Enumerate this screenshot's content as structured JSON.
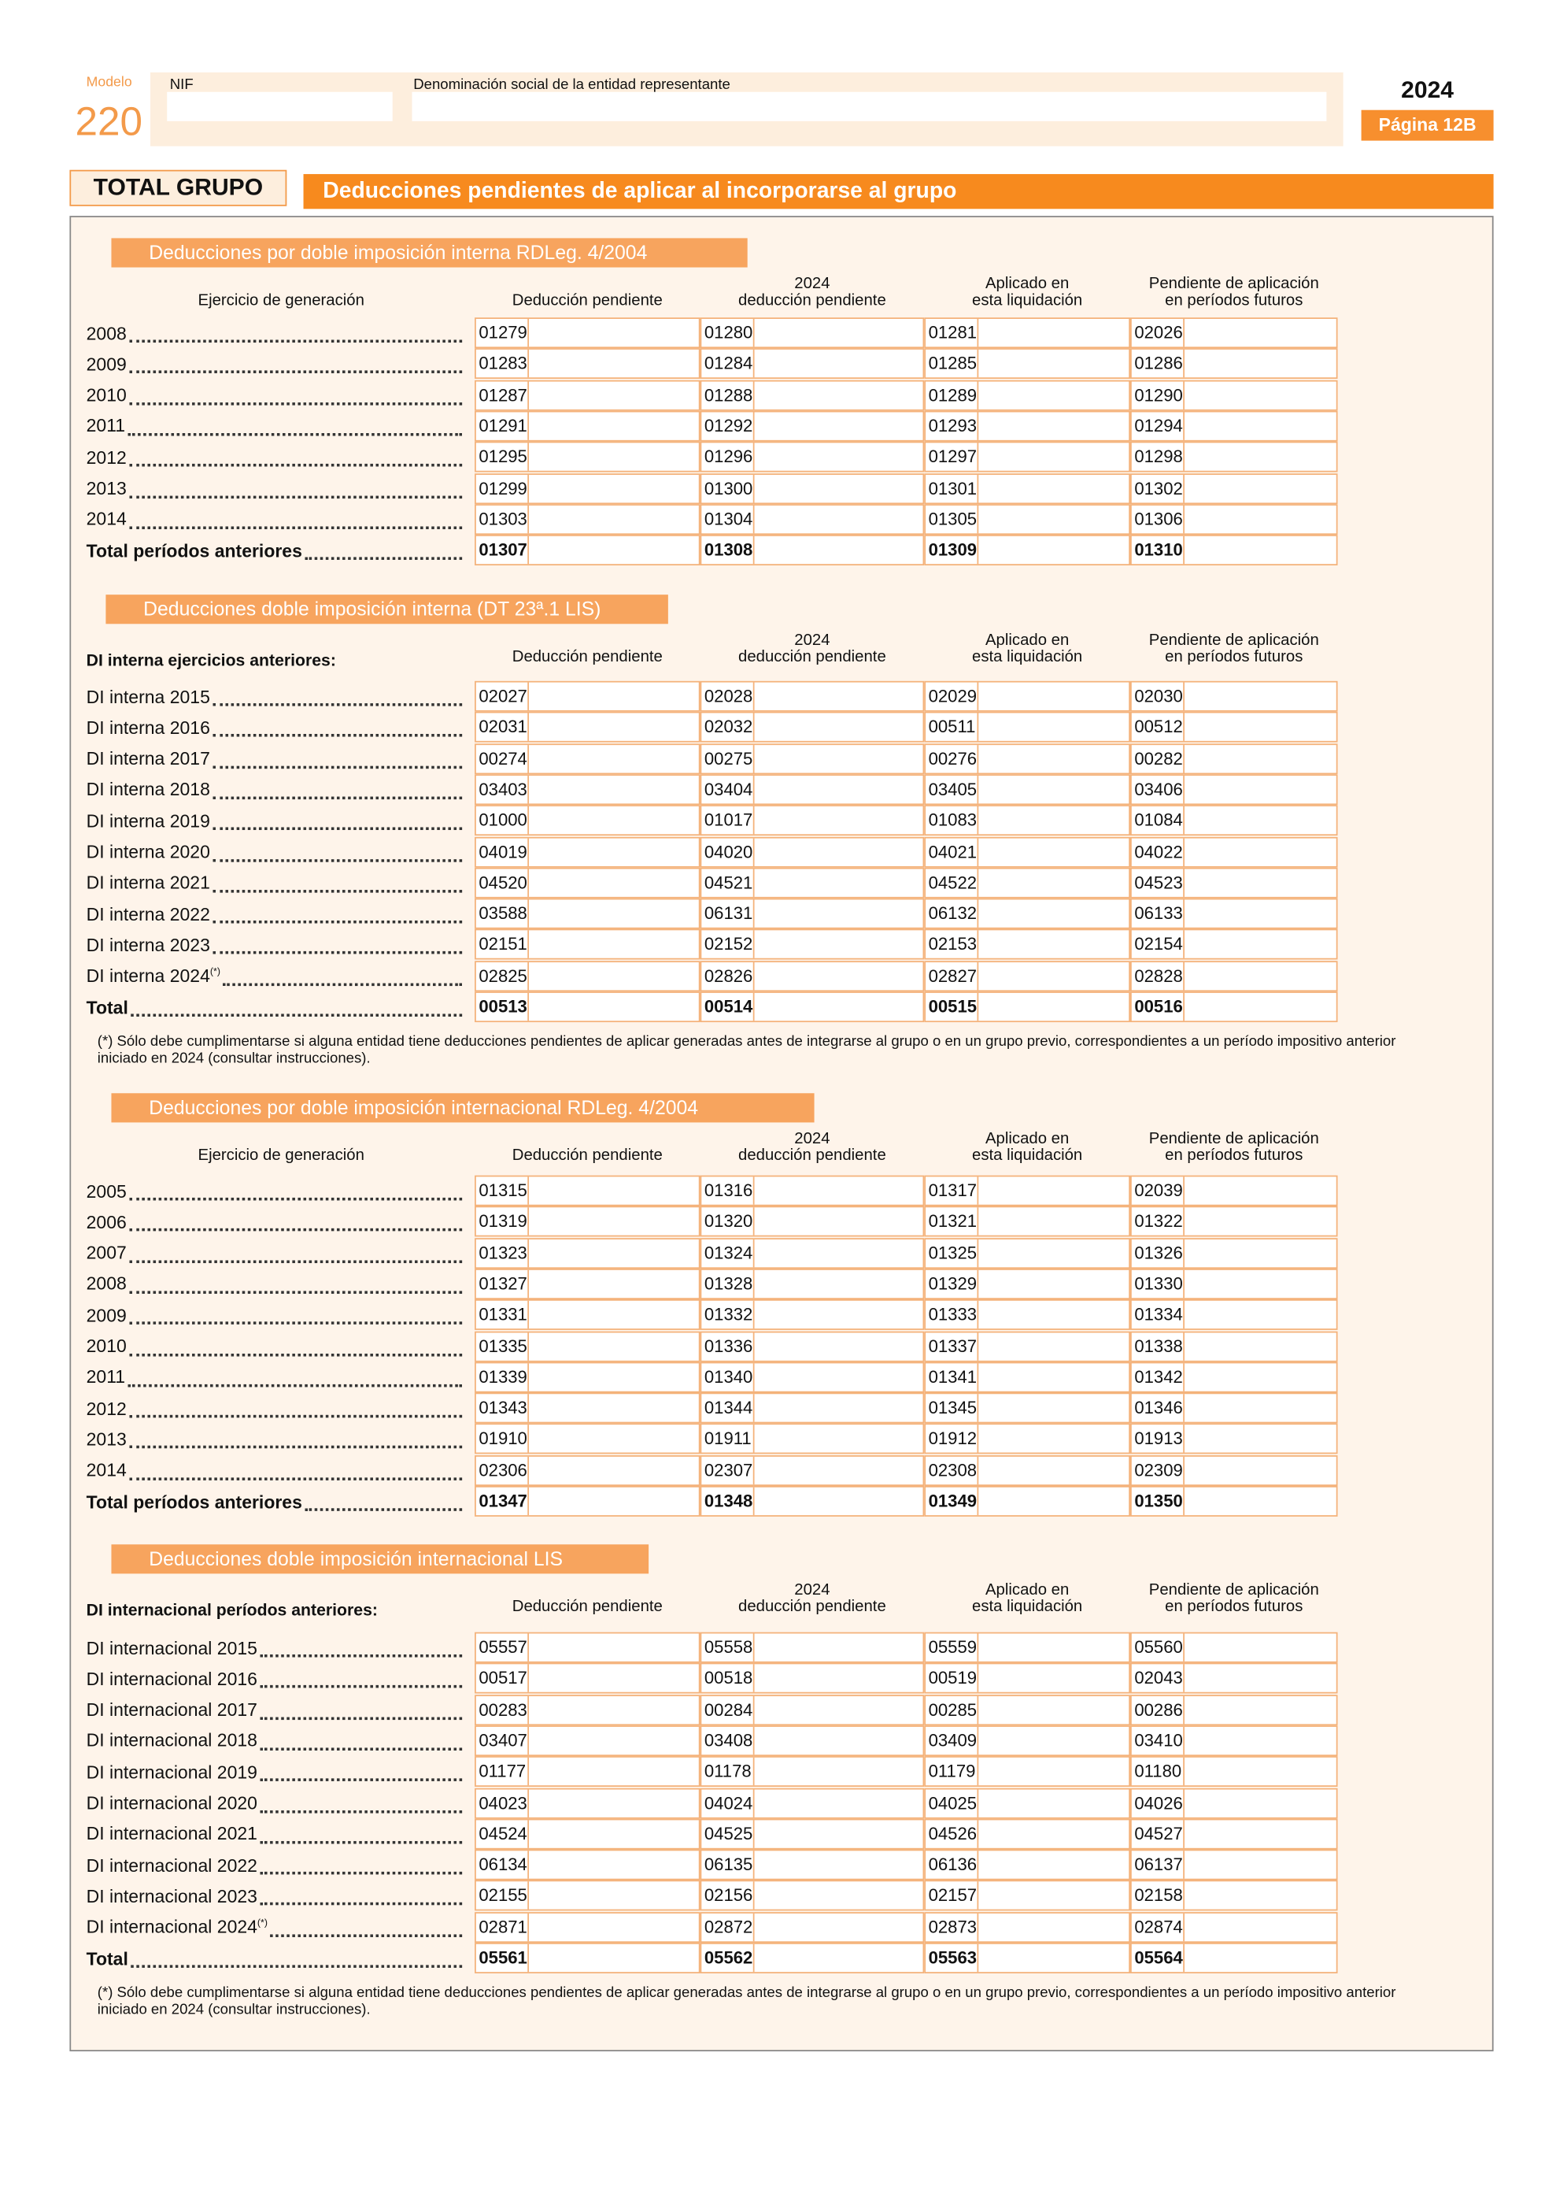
{
  "header": {
    "modelo": "Modelo",
    "number": "220",
    "nif_label": "NIF",
    "denom_label": "Denominación social de la entidad representante",
    "year": "2024",
    "page": "Página 12B"
  },
  "section": {
    "badge": "TOTAL GRUPO",
    "title": "Deducciones pendientes de aplicar al incorporarse al grupo"
  },
  "tables": [
    {
      "title": "Deducciones por doble imposición interna RDLeg. 4/2004",
      "ejercicio_header": "Ejercicio de generación",
      "columns": [
        [
          "Deducción pendiente"
        ],
        [
          "2024",
          "deducción pendiente"
        ],
        [
          "Aplicado en",
          "esta liquidación"
        ],
        [
          "Pendiente de aplicación",
          "en períodos futuros"
        ]
      ],
      "rows": [
        {
          "label": "2008",
          "codes": [
            "01279",
            "01280",
            "01281",
            "02026"
          ]
        },
        {
          "label": "2009",
          "codes": [
            "01283",
            "01284",
            "01285",
            "01286"
          ]
        },
        {
          "label": "2010",
          "codes": [
            "01287",
            "01288",
            "01289",
            "01290"
          ]
        },
        {
          "label": "2011",
          "codes": [
            "01291",
            "01292",
            "01293",
            "01294"
          ]
        },
        {
          "label": "2012",
          "codes": [
            "01295",
            "01296",
            "01297",
            "01298"
          ]
        },
        {
          "label": "2013",
          "codes": [
            "01299",
            "01300",
            "01301",
            "01302"
          ]
        },
        {
          "label": "2014",
          "codes": [
            "01303",
            "01304",
            "01305",
            "01306"
          ]
        }
      ],
      "total": {
        "label": "Total períodos anteriores",
        "codes": [
          "01307",
          "01308",
          "01309",
          "01310"
        ]
      }
    },
    {
      "title": "Deducciones doble imposición interna (DT 23ª.1 LIS)",
      "group_label": "DI interna ejercicios anteriores:",
      "columns": [
        [
          "Deducción pendiente"
        ],
        [
          "2024",
          "deducción pendiente"
        ],
        [
          "Aplicado en",
          "esta liquidación"
        ],
        [
          "Pendiente de aplicación",
          "en períodos futuros"
        ]
      ],
      "rows": [
        {
          "label": "DI interna 2015",
          "codes": [
            "02027",
            "02028",
            "02029",
            "02030"
          ]
        },
        {
          "label": "DI interna 2016",
          "codes": [
            "02031",
            "02032",
            "00511",
            "00512"
          ]
        },
        {
          "label": "DI interna 2017",
          "codes": [
            "00274",
            "00275",
            "00276",
            "00282"
          ]
        },
        {
          "label": "DI interna 2018",
          "codes": [
            "03403",
            "03404",
            "03405",
            "03406"
          ]
        },
        {
          "label": "DI interna 2019",
          "codes": [
            "01000",
            "01017",
            "01083",
            "01084"
          ]
        },
        {
          "label": "DI interna 2020",
          "codes": [
            "04019",
            "04020",
            "04021",
            "04022"
          ]
        },
        {
          "label": "DI interna 2021",
          "codes": [
            "04520",
            "04521",
            "04522",
            "04523"
          ]
        },
        {
          "label": "DI interna 2022",
          "codes": [
            "03588",
            "06131",
            "06132",
            "06133"
          ]
        },
        {
          "label": "DI interna 2023",
          "codes": [
            "02151",
            "02152",
            "02153",
            "02154"
          ]
        },
        {
          "label": "DI interna 2024",
          "sup": "(*)",
          "codes": [
            "02825",
            "02826",
            "02827",
            "02828"
          ]
        }
      ],
      "total": {
        "label": "Total",
        "codes": [
          "00513",
          "00514",
          "00515",
          "00516"
        ]
      },
      "footnote": "(*)  Sólo debe cumplimentarse si alguna entidad tiene deducciones pendientes de aplicar generadas antes de integrarse al grupo o en un grupo previo, correspondientes a un período impositivo anterior iniciado en 2024 (consultar instrucciones)."
    },
    {
      "title": "Deducciones por doble imposición internacional RDLeg. 4/2004",
      "ejercicio_header": "Ejercicio de generación",
      "columns": [
        [
          "Deducción pendiente"
        ],
        [
          "2024",
          "deducción pendiente"
        ],
        [
          "Aplicado en",
          "esta liquidación"
        ],
        [
          "Pendiente de aplicación",
          "en períodos futuros"
        ]
      ],
      "rows": [
        {
          "label": "2005",
          "codes": [
            "01315",
            "01316",
            "01317",
            "02039"
          ]
        },
        {
          "label": "2006",
          "codes": [
            "01319",
            "01320",
            "01321",
            "01322"
          ]
        },
        {
          "label": "2007",
          "codes": [
            "01323",
            "01324",
            "01325",
            "01326"
          ]
        },
        {
          "label": "2008",
          "codes": [
            "01327",
            "01328",
            "01329",
            "01330"
          ]
        },
        {
          "label": "2009",
          "codes": [
            "01331",
            "01332",
            "01333",
            "01334"
          ]
        },
        {
          "label": "2010",
          "codes": [
            "01335",
            "01336",
            "01337",
            "01338"
          ]
        },
        {
          "label": "2011",
          "codes": [
            "01339",
            "01340",
            "01341",
            "01342"
          ]
        },
        {
          "label": "2012",
          "codes": [
            "01343",
            "01344",
            "01345",
            "01346"
          ]
        },
        {
          "label": "2013",
          "codes": [
            "01910",
            "01911",
            "01912",
            "01913"
          ]
        },
        {
          "label": "2014",
          "codes": [
            "02306",
            "02307",
            "02308",
            "02309"
          ]
        }
      ],
      "total": {
        "label": "Total períodos anteriores",
        "codes": [
          "01347",
          "01348",
          "01349",
          "01350"
        ]
      }
    },
    {
      "title": "Deducciones doble imposición internacional LIS",
      "group_label": "DI internacional períodos anteriores:",
      "columns": [
        [
          "Deducción pendiente"
        ],
        [
          "2024",
          "deducción pendiente"
        ],
        [
          "Aplicado en",
          "esta liquidación"
        ],
        [
          "Pendiente de aplicación",
          "en períodos futuros"
        ]
      ],
      "rows": [
        {
          "label": "DI internacional 2015",
          "codes": [
            "05557",
            "05558",
            "05559",
            "05560"
          ]
        },
        {
          "label": "DI internacional 2016",
          "codes": [
            "00517",
            "00518",
            "00519",
            "02043"
          ]
        },
        {
          "label": "DI internacional 2017",
          "codes": [
            "00283",
            "00284",
            "00285",
            "00286"
          ]
        },
        {
          "label": "DI internacional 2018",
          "codes": [
            "03407",
            "03408",
            "03409",
            "03410"
          ]
        },
        {
          "label": "DI internacional 2019",
          "codes": [
            "01177",
            "01178",
            "01179",
            "01180"
          ]
        },
        {
          "label": "DI internacional 2020",
          "codes": [
            "04023",
            "04024",
            "04025",
            "04026"
          ]
        },
        {
          "label": "DI internacional 2021",
          "codes": [
            "04524",
            "04525",
            "04526",
            "04527"
          ]
        },
        {
          "label": "DI internacional 2022",
          "codes": [
            "06134",
            "06135",
            "06136",
            "06137"
          ]
        },
        {
          "label": "DI internacional 2023",
          "codes": [
            "02155",
            "02156",
            "02157",
            "02158"
          ]
        },
        {
          "label": "DI internacional 2024",
          "sup": "(*)",
          "codes": [
            "02871",
            "02872",
            "02873",
            "02874"
          ]
        }
      ],
      "total": {
        "label": "Total",
        "codes": [
          "05561",
          "05562",
          "05563",
          "05564"
        ]
      },
      "footnote": "(*)  Sólo debe cumplimentarse si alguna entidad tiene deducciones pendientes de aplicar generadas antes de integrarse al grupo o en un grupo previo, correspondientes a un período impositivo anterior iniciado en 2024 (consultar instrucciones)."
    }
  ]
}
